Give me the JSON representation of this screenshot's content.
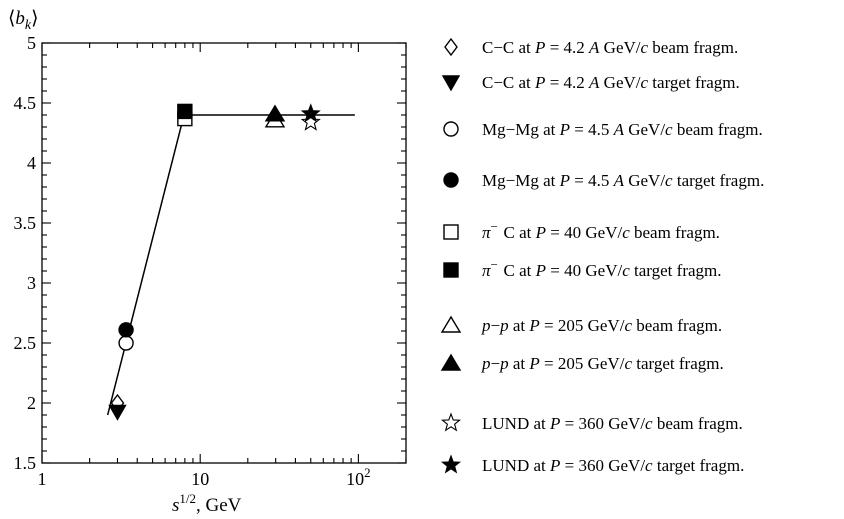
{
  "chart_data": {
    "type": "scatter",
    "xlabel": "s^{1/2}, GeV",
    "ylabel": "⟨b_k⟩",
    "x_scale": "log",
    "xlim": [
      1,
      200
    ],
    "ylim": [
      1.5,
      5
    ],
    "x_ticks": [
      {
        "value": 1,
        "label": "1"
      },
      {
        "value": 10,
        "label": "10"
      },
      {
        "value": 100,
        "label": "10",
        "sup": "2"
      }
    ],
    "y_ticks": [
      {
        "value": 1.5,
        "label": "1.5"
      },
      {
        "value": 2,
        "label": "2"
      },
      {
        "value": 2.5,
        "label": "2.5"
      },
      {
        "value": 3,
        "label": "3"
      },
      {
        "value": 3.5,
        "label": "3.5"
      },
      {
        "value": 4,
        "label": "4"
      },
      {
        "value": 4.5,
        "label": "4.5"
      },
      {
        "value": 5,
        "label": "5"
      }
    ],
    "grid": false,
    "legend_position": "right",
    "series": [
      {
        "name": "C−C at P = 4.2 A GeV/c beam fragm.",
        "marker": "diamond-open",
        "points": [
          [
            3.0,
            2.0
          ]
        ]
      },
      {
        "name": "C−C at P = 4.2 A GeV/c target fragm.",
        "marker": "triangle-down-filled",
        "points": [
          [
            3.0,
            1.93
          ]
        ]
      },
      {
        "name": "Mg−Mg at P = 4.5 A GeV/c beam fragm.",
        "marker": "circle-open",
        "points": [
          [
            3.4,
            2.5
          ]
        ]
      },
      {
        "name": "Mg−Mg at P = 4.5 A GeV/c target fragm.",
        "marker": "circle-filled",
        "points": [
          [
            3.4,
            2.61
          ]
        ]
      },
      {
        "name": "π− C at P = 40 GeV/c beam fragm.",
        "marker": "square-open",
        "points": [
          [
            8.0,
            4.37
          ]
        ]
      },
      {
        "name": "π− C at P = 40 GeV/c target fragm.",
        "marker": "square-filled",
        "points": [
          [
            8.0,
            4.43
          ]
        ]
      },
      {
        "name": "p−p at P = 205 GeV/c beam fragm.",
        "marker": "triangle-up-open",
        "points": [
          [
            29.7,
            4.36
          ]
        ]
      },
      {
        "name": "p−p at P = 205 GeV/c target fragm.",
        "marker": "triangle-up-filled",
        "points": [
          [
            29.7,
            4.41
          ]
        ]
      },
      {
        "name": "LUND at P = 360 GeV/c beam fragm.",
        "marker": "star-open",
        "points": [
          [
            50,
            4.34
          ]
        ]
      },
      {
        "name": "LUND at P = 360 GeV/c target fragm.",
        "marker": "star-filled",
        "points": [
          [
            50,
            4.41
          ]
        ]
      }
    ],
    "fit_lines": [
      {
        "points": [
          [
            2.6,
            1.9
          ],
          [
            7.9,
            4.4
          ]
        ]
      },
      {
        "points": [
          [
            7.9,
            4.4
          ],
          [
            95,
            4.4
          ]
        ]
      }
    ]
  },
  "legend": [
    {
      "marker": "diamond-open",
      "pre": "C−C at ",
      "ital": "P",
      "mid": " = 4.2 ",
      "ital2": "A",
      "unit_pre": " GeV/",
      "unit_ital": "c",
      "post": " beam fragm."
    },
    {
      "marker": "triangle-down-filled",
      "pre": "C−C at ",
      "ital": "P",
      "mid": " = 4.2 ",
      "ital2": "A",
      "unit_pre": " GeV/",
      "unit_ital": "c",
      "post": " target fragm."
    },
    {
      "marker": "circle-open",
      "pre": "Mg−Mg at ",
      "ital": "P",
      "mid": " = 4.5 ",
      "ital2": "A",
      "unit_pre": " GeV/",
      "unit_ital": "c",
      "post": " beam fragm."
    },
    {
      "marker": "circle-filled",
      "pre": "Mg−Mg at ",
      "ital": "P",
      "mid": " = 4.5 ",
      "ital2": "A",
      "unit_pre": " GeV/",
      "unit_ital": "c",
      "post": " target fragm."
    },
    {
      "marker": "square-open",
      "lead_ital": "π",
      "lead_sup": "−",
      "pre": " C at ",
      "ital": "P",
      "mid": " = 40",
      "ital2": "",
      "unit_pre": " GeV/",
      "unit_ital": "c",
      "post": " beam fragm."
    },
    {
      "marker": "square-filled",
      "lead_ital": "π",
      "lead_sup": "−",
      "pre": " C at ",
      "ital": "P",
      "mid": " = 40",
      "ital2": "",
      "unit_pre": " GeV/",
      "unit_ital": "c",
      "post": " target fragm."
    },
    {
      "marker": "triangle-up-open",
      "lead_ital": "p",
      "lead_mid": "−",
      "lead_ital2": "p",
      "pre": " at ",
      "ital": "P",
      "mid": " = 205",
      "ital2": "",
      "unit_pre": " GeV/",
      "unit_ital": "c",
      "post": " beam fragm."
    },
    {
      "marker": "triangle-up-filled",
      "lead_ital": "p",
      "lead_mid": "−",
      "lead_ital2": "p",
      "pre": " at ",
      "ital": "P",
      "mid": " = 205",
      "ital2": "",
      "unit_pre": " GeV/",
      "unit_ital": "c",
      "post": " target fragm."
    },
    {
      "marker": "star-open",
      "pre": "LUND at ",
      "ital": "P",
      "mid": " = 360",
      "ital2": "",
      "unit_pre": " GeV/",
      "unit_ital": "c",
      "post": " beam fragm."
    },
    {
      "marker": "star-filled",
      "pre": "LUND at ",
      "ital": "P",
      "mid": " = 360",
      "ital2": "",
      "unit_pre": " GeV/",
      "unit_ital": "c",
      "post": " target fragm."
    }
  ],
  "axis_text": {
    "x_label_base": "s",
    "x_label_sup": "1/2",
    "x_label_rest": ", GeV",
    "y_label_base": "b",
    "y_label_sub": "k",
    "y_label_open": "⟨",
    "y_label_close": "⟩"
  }
}
